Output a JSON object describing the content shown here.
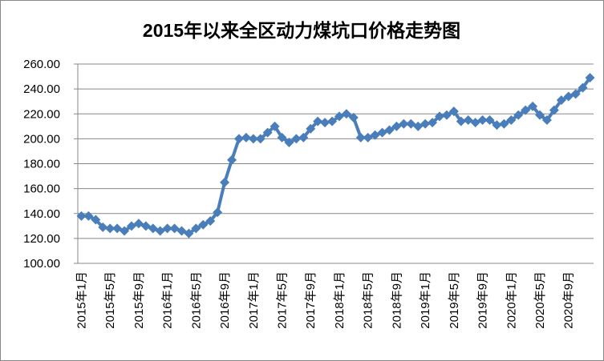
{
  "chart_data": {
    "type": "line",
    "title": "2015年以来全区动力煤坑口价格走势图",
    "categories": [
      "2015年1月",
      null,
      null,
      null,
      "2015年5月",
      null,
      null,
      null,
      "2015年9月",
      null,
      null,
      null,
      "2016年1月",
      null,
      null,
      null,
      "2016年5月",
      null,
      null,
      null,
      "2016年9月",
      null,
      null,
      null,
      "2017年1月",
      null,
      null,
      null,
      "2017年5月",
      null,
      null,
      null,
      "2017年9月",
      null,
      null,
      null,
      "2018年1月",
      null,
      null,
      null,
      "2018年5月",
      null,
      null,
      null,
      "2018年9月",
      null,
      null,
      null,
      "2019年1月",
      null,
      null,
      null,
      "2019年5月",
      null,
      null,
      null,
      "2019年9月",
      null,
      null,
      null,
      "2020年1月",
      null,
      null,
      null,
      "2020年5月",
      null,
      null,
      null,
      "2020年9月",
      null,
      null,
      null
    ],
    "values": [
      138,
      138,
      135,
      129,
      128,
      128,
      126,
      130,
      132,
      130,
      128,
      126,
      128,
      128,
      126,
      124,
      128,
      131,
      134,
      141,
      165,
      183,
      200,
      201,
      200,
      200,
      205,
      210,
      201,
      197,
      200,
      201,
      208,
      214,
      213,
      214,
      218,
      220,
      217,
      201,
      201,
      203,
      205,
      207,
      210,
      212,
      212,
      210,
      212,
      213,
      218,
      219,
      222,
      214,
      215,
      213,
      215,
      215,
      211,
      212,
      215,
      219,
      223,
      226,
      219,
      215,
      223,
      231,
      234,
      236,
      241,
      249
    ],
    "color": "#4a7ebb",
    "ylim": [
      100,
      260
    ],
    "yticks": [
      {
        "value": 100,
        "label": "100.00"
      },
      {
        "value": 120,
        "label": "120.00"
      },
      {
        "value": 140,
        "label": "140.00"
      },
      {
        "value": 160,
        "label": "160.00"
      },
      {
        "value": 180,
        "label": "180.00"
      },
      {
        "value": 200,
        "label": "200.00"
      },
      {
        "value": 220,
        "label": "220.00"
      },
      {
        "value": 240,
        "label": "240.00"
      },
      {
        "value": 260,
        "label": "260.00"
      }
    ],
    "grid": true
  }
}
